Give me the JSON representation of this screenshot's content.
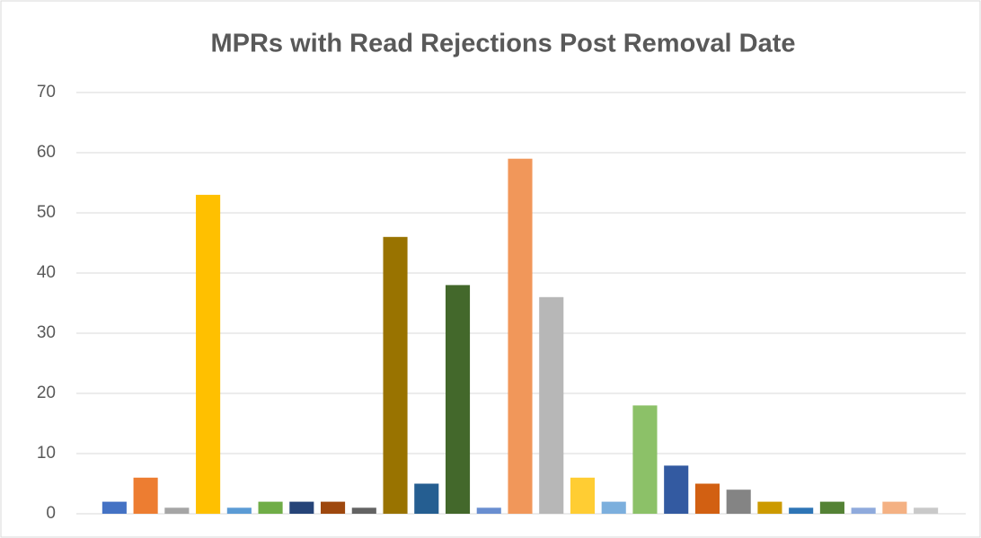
{
  "chart_data": {
    "type": "bar",
    "title": "MPRs with Read Rejections Post Removal Date",
    "categories": [
      null,
      null,
      null,
      null,
      null,
      null,
      null,
      null,
      null,
      null,
      null,
      null,
      null,
      null,
      null,
      null,
      null,
      null,
      null,
      null,
      null,
      null,
      null,
      null,
      null,
      null,
      null
    ],
    "values": [
      2,
      6,
      1,
      53,
      1,
      2,
      2,
      2,
      1,
      46,
      5,
      38,
      1,
      59,
      36,
      6,
      2,
      18,
      8,
      5,
      4,
      2,
      1,
      2,
      1,
      2,
      1
    ],
    "colors": [
      "#4472c4",
      "#ed7d31",
      "#a5a5a5",
      "#ffc000",
      "#5b9bd5",
      "#70ad47",
      "#264478",
      "#9e480e",
      "#636363",
      "#997300",
      "#255e91",
      "#43682b",
      "#698ed0",
      "#f1975a",
      "#b7b7b7",
      "#ffcd33",
      "#7cafdd",
      "#8cc168",
      "#335aa1",
      "#d26012",
      "#848484",
      "#cc9a00",
      "#2e75b6",
      "#548235",
      "#8faadc",
      "#f4b183",
      "#c9c9c9"
    ],
    "ylim": [
      0,
      70
    ],
    "yticks": [
      0,
      10,
      20,
      30,
      40,
      50,
      60,
      70
    ],
    "grid": true
  }
}
